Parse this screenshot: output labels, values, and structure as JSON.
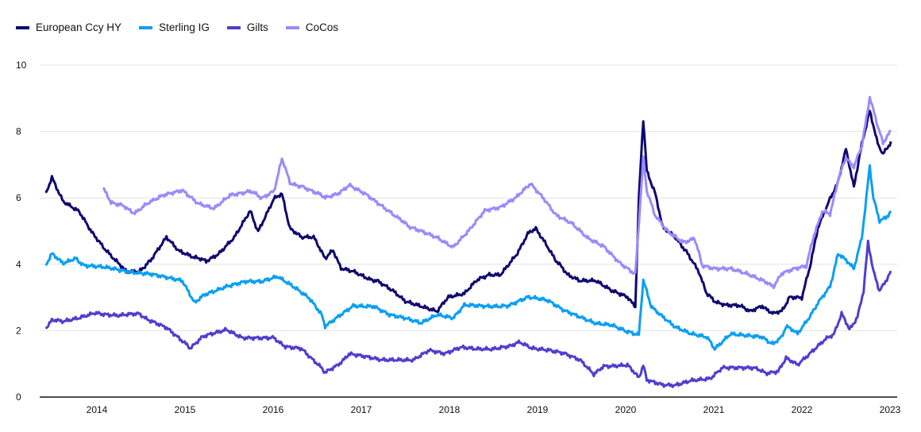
{
  "chart_data": {
    "type": "line",
    "title": "",
    "xlabel": "",
    "ylabel": "",
    "xlim": [
      2013.35,
      2023.15
    ],
    "ylim": [
      0,
      10
    ],
    "yticks": [
      0,
      2,
      4,
      6,
      8,
      10
    ],
    "xticks": [
      2014,
      2015,
      2016,
      2017,
      2018,
      2019,
      2020,
      2021,
      2022,
      2023
    ],
    "grid": "horizontal",
    "legend_position": "top-left",
    "series": [
      {
        "name": "European Ccy HY",
        "color": "#10086e",
        "points": [
          [
            2013.42,
            6.1
          ],
          [
            2013.49,
            6.6
          ],
          [
            2013.62,
            5.9
          ],
          [
            2013.8,
            5.6
          ],
          [
            2013.94,
            5.0
          ],
          [
            2014.07,
            4.5
          ],
          [
            2014.21,
            4.1
          ],
          [
            2014.34,
            3.8
          ],
          [
            2014.48,
            3.8
          ],
          [
            2014.61,
            4.1
          ],
          [
            2014.79,
            4.8
          ],
          [
            2014.93,
            4.4
          ],
          [
            2015.11,
            4.2
          ],
          [
            2015.24,
            4.1
          ],
          [
            2015.38,
            4.3
          ],
          [
            2015.56,
            4.8
          ],
          [
            2015.74,
            5.6
          ],
          [
            2015.83,
            5.0
          ],
          [
            2016.01,
            6.0
          ],
          [
            2016.1,
            6.1
          ],
          [
            2016.19,
            5.1
          ],
          [
            2016.32,
            4.8
          ],
          [
            2016.46,
            4.8
          ],
          [
            2016.59,
            4.2
          ],
          [
            2016.68,
            4.4
          ],
          [
            2016.77,
            3.9
          ],
          [
            2016.91,
            3.8
          ],
          [
            2017.05,
            3.6
          ],
          [
            2017.18,
            3.5
          ],
          [
            2017.36,
            3.2
          ],
          [
            2017.5,
            2.9
          ],
          [
            2017.68,
            2.75
          ],
          [
            2017.86,
            2.6
          ],
          [
            2017.99,
            3.0
          ],
          [
            2018.17,
            3.1
          ],
          [
            2018.31,
            3.5
          ],
          [
            2018.44,
            3.7
          ],
          [
            2018.58,
            3.7
          ],
          [
            2018.76,
            4.3
          ],
          [
            2018.89,
            4.9
          ],
          [
            2018.98,
            5.1
          ],
          [
            2019.07,
            4.7
          ],
          [
            2019.21,
            4.1
          ],
          [
            2019.34,
            3.7
          ],
          [
            2019.48,
            3.5
          ],
          [
            2019.66,
            3.5
          ],
          [
            2019.84,
            3.2
          ],
          [
            2020.02,
            3.0
          ],
          [
            2020.11,
            2.75
          ],
          [
            2020.15,
            6.0
          ],
          [
            2020.2,
            8.35
          ],
          [
            2020.24,
            6.8
          ],
          [
            2020.33,
            6.2
          ],
          [
            2020.42,
            5.1
          ],
          [
            2020.56,
            4.8
          ],
          [
            2020.69,
            4.4
          ],
          [
            2020.83,
            3.8
          ],
          [
            2020.92,
            3.1
          ],
          [
            2021.01,
            2.9
          ],
          [
            2021.14,
            2.75
          ],
          [
            2021.28,
            2.75
          ],
          [
            2021.41,
            2.6
          ],
          [
            2021.55,
            2.75
          ],
          [
            2021.68,
            2.5
          ],
          [
            2021.77,
            2.6
          ],
          [
            2021.86,
            3.0
          ],
          [
            2022.0,
            3.0
          ],
          [
            2022.09,
            3.9
          ],
          [
            2022.18,
            5.1
          ],
          [
            2022.32,
            6.0
          ],
          [
            2022.41,
            6.45
          ],
          [
            2022.5,
            7.5
          ],
          [
            2022.59,
            6.3
          ],
          [
            2022.68,
            7.65
          ],
          [
            2022.77,
            8.6
          ],
          [
            2022.86,
            7.65
          ],
          [
            2022.92,
            7.3
          ],
          [
            2023.01,
            7.7
          ]
        ]
      },
      {
        "name": "Sterling IG",
        "color": "#0a9ff2",
        "points": [
          [
            2013.42,
            3.95
          ],
          [
            2013.49,
            4.3
          ],
          [
            2013.62,
            4.05
          ],
          [
            2013.76,
            4.2
          ],
          [
            2013.85,
            3.95
          ],
          [
            2014.07,
            3.9
          ],
          [
            2014.34,
            3.8
          ],
          [
            2014.61,
            3.7
          ],
          [
            2014.79,
            3.6
          ],
          [
            2014.97,
            3.5
          ],
          [
            2015.11,
            2.85
          ],
          [
            2015.24,
            3.1
          ],
          [
            2015.47,
            3.35
          ],
          [
            2015.69,
            3.5
          ],
          [
            2015.87,
            3.5
          ],
          [
            2016.05,
            3.65
          ],
          [
            2016.23,
            3.35
          ],
          [
            2016.41,
            3.0
          ],
          [
            2016.55,
            2.5
          ],
          [
            2016.59,
            2.15
          ],
          [
            2016.77,
            2.5
          ],
          [
            2016.91,
            2.75
          ],
          [
            2017.14,
            2.75
          ],
          [
            2017.32,
            2.5
          ],
          [
            2017.5,
            2.4
          ],
          [
            2017.68,
            2.25
          ],
          [
            2017.86,
            2.5
          ],
          [
            2018.04,
            2.4
          ],
          [
            2018.17,
            2.75
          ],
          [
            2018.4,
            2.75
          ],
          [
            2018.67,
            2.75
          ],
          [
            2018.89,
            3.0
          ],
          [
            2019.12,
            2.9
          ],
          [
            2019.3,
            2.6
          ],
          [
            2019.48,
            2.4
          ],
          [
            2019.66,
            2.2
          ],
          [
            2019.84,
            2.15
          ],
          [
            2020.02,
            1.95
          ],
          [
            2020.15,
            1.9
          ],
          [
            2020.2,
            3.5
          ],
          [
            2020.29,
            2.75
          ],
          [
            2020.42,
            2.4
          ],
          [
            2020.56,
            2.1
          ],
          [
            2020.74,
            1.9
          ],
          [
            2020.92,
            1.8
          ],
          [
            2021.01,
            1.45
          ],
          [
            2021.19,
            1.9
          ],
          [
            2021.37,
            1.85
          ],
          [
            2021.55,
            1.8
          ],
          [
            2021.68,
            1.6
          ],
          [
            2021.77,
            1.8
          ],
          [
            2021.82,
            2.15
          ],
          [
            2021.95,
            1.9
          ],
          [
            2022.09,
            2.4
          ],
          [
            2022.18,
            2.85
          ],
          [
            2022.32,
            3.35
          ],
          [
            2022.41,
            4.3
          ],
          [
            2022.54,
            4.05
          ],
          [
            2022.59,
            3.85
          ],
          [
            2022.68,
            4.8
          ],
          [
            2022.77,
            6.95
          ],
          [
            2022.81,
            6.0
          ],
          [
            2022.88,
            5.3
          ],
          [
            2022.95,
            5.4
          ],
          [
            2023.01,
            5.6
          ]
        ]
      },
      {
        "name": "Gilts",
        "color": "#4e3ecf",
        "points": [
          [
            2013.42,
            2.05
          ],
          [
            2013.49,
            2.3
          ],
          [
            2013.62,
            2.3
          ],
          [
            2013.8,
            2.4
          ],
          [
            2013.98,
            2.55
          ],
          [
            2014.25,
            2.45
          ],
          [
            2014.48,
            2.5
          ],
          [
            2014.61,
            2.3
          ],
          [
            2014.79,
            2.1
          ],
          [
            2014.97,
            1.7
          ],
          [
            2015.06,
            1.45
          ],
          [
            2015.2,
            1.8
          ],
          [
            2015.47,
            2.05
          ],
          [
            2015.65,
            1.8
          ],
          [
            2015.87,
            1.8
          ],
          [
            2016.01,
            1.8
          ],
          [
            2016.14,
            1.5
          ],
          [
            2016.32,
            1.45
          ],
          [
            2016.46,
            1.1
          ],
          [
            2016.59,
            0.75
          ],
          [
            2016.73,
            0.95
          ],
          [
            2016.86,
            1.3
          ],
          [
            2017.05,
            1.2
          ],
          [
            2017.23,
            1.1
          ],
          [
            2017.41,
            1.1
          ],
          [
            2017.59,
            1.1
          ],
          [
            2017.77,
            1.4
          ],
          [
            2017.95,
            1.3
          ],
          [
            2018.13,
            1.5
          ],
          [
            2018.31,
            1.45
          ],
          [
            2018.49,
            1.45
          ],
          [
            2018.71,
            1.55
          ],
          [
            2018.8,
            1.65
          ],
          [
            2018.94,
            1.45
          ],
          [
            2019.12,
            1.4
          ],
          [
            2019.3,
            1.3
          ],
          [
            2019.48,
            1.1
          ],
          [
            2019.64,
            0.7
          ],
          [
            2019.75,
            0.95
          ],
          [
            2020.02,
            0.95
          ],
          [
            2020.15,
            0.6
          ],
          [
            2020.2,
            0.95
          ],
          [
            2020.24,
            0.5
          ],
          [
            2020.42,
            0.35
          ],
          [
            2020.56,
            0.35
          ],
          [
            2020.74,
            0.5
          ],
          [
            2020.96,
            0.55
          ],
          [
            2021.1,
            0.9
          ],
          [
            2021.28,
            0.9
          ],
          [
            2021.46,
            0.9
          ],
          [
            2021.59,
            0.7
          ],
          [
            2021.73,
            0.75
          ],
          [
            2021.82,
            1.2
          ],
          [
            2021.95,
            0.95
          ],
          [
            2022.05,
            1.2
          ],
          [
            2022.23,
            1.65
          ],
          [
            2022.36,
            1.9
          ],
          [
            2022.45,
            2.5
          ],
          [
            2022.54,
            2.05
          ],
          [
            2022.63,
            2.4
          ],
          [
            2022.7,
            3.2
          ],
          [
            2022.75,
            4.65
          ],
          [
            2022.81,
            3.8
          ],
          [
            2022.88,
            3.2
          ],
          [
            2022.95,
            3.5
          ],
          [
            2023.01,
            3.8
          ]
        ]
      },
      {
        "name": "CoCos",
        "color": "#9a8afc",
        "points": [
          [
            2014.07,
            6.3
          ],
          [
            2014.16,
            5.85
          ],
          [
            2014.3,
            5.75
          ],
          [
            2014.43,
            5.55
          ],
          [
            2014.57,
            5.85
          ],
          [
            2014.75,
            6.1
          ],
          [
            2014.97,
            6.25
          ],
          [
            2015.15,
            5.85
          ],
          [
            2015.33,
            5.7
          ],
          [
            2015.51,
            6.1
          ],
          [
            2015.74,
            6.2
          ],
          [
            2015.87,
            6.0
          ],
          [
            2016.01,
            6.2
          ],
          [
            2016.1,
            7.2
          ],
          [
            2016.19,
            6.45
          ],
          [
            2016.32,
            6.35
          ],
          [
            2016.46,
            6.2
          ],
          [
            2016.59,
            6.0
          ],
          [
            2016.73,
            6.1
          ],
          [
            2016.86,
            6.4
          ],
          [
            2017.05,
            6.1
          ],
          [
            2017.23,
            5.75
          ],
          [
            2017.41,
            5.4
          ],
          [
            2017.54,
            5.15
          ],
          [
            2017.68,
            5.0
          ],
          [
            2017.86,
            4.8
          ],
          [
            2018.04,
            4.5
          ],
          [
            2018.22,
            5.0
          ],
          [
            2018.4,
            5.6
          ],
          [
            2018.58,
            5.7
          ],
          [
            2018.76,
            6.0
          ],
          [
            2018.92,
            6.45
          ],
          [
            2019.07,
            6.0
          ],
          [
            2019.21,
            5.5
          ],
          [
            2019.39,
            5.25
          ],
          [
            2019.57,
            4.8
          ],
          [
            2019.75,
            4.55
          ],
          [
            2019.93,
            4.05
          ],
          [
            2020.11,
            3.7
          ],
          [
            2020.15,
            5.25
          ],
          [
            2020.2,
            7.2
          ],
          [
            2020.24,
            6.2
          ],
          [
            2020.33,
            5.5
          ],
          [
            2020.47,
            5.0
          ],
          [
            2020.65,
            4.65
          ],
          [
            2020.78,
            4.8
          ],
          [
            2020.87,
            3.95
          ],
          [
            2021.01,
            3.85
          ],
          [
            2021.19,
            3.85
          ],
          [
            2021.37,
            3.7
          ],
          [
            2021.55,
            3.5
          ],
          [
            2021.68,
            3.35
          ],
          [
            2021.77,
            3.7
          ],
          [
            2021.91,
            3.85
          ],
          [
            2022.05,
            3.95
          ],
          [
            2022.14,
            4.9
          ],
          [
            2022.23,
            5.6
          ],
          [
            2022.32,
            5.5
          ],
          [
            2022.41,
            6.55
          ],
          [
            2022.5,
            7.2
          ],
          [
            2022.59,
            6.95
          ],
          [
            2022.68,
            7.55
          ],
          [
            2022.77,
            9.05
          ],
          [
            2022.86,
            8.15
          ],
          [
            2022.92,
            7.65
          ],
          [
            2023.01,
            8.0
          ]
        ]
      }
    ]
  }
}
